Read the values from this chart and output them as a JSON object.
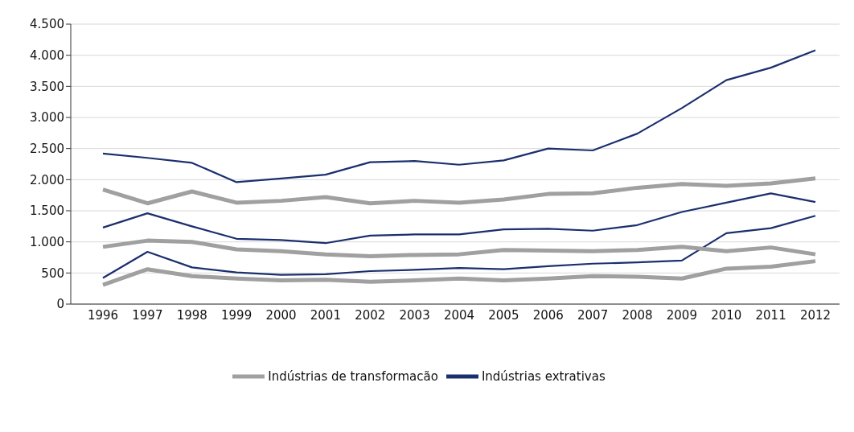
{
  "chart_data": {
    "type": "line",
    "categories": [
      "1996",
      "1997",
      "1998",
      "1999",
      "2000",
      "2001",
      "2002",
      "2003",
      "2004",
      "2005",
      "2006",
      "2007",
      "2008",
      "2009",
      "2010",
      "2011",
      "2012"
    ],
    "series": [
      {
        "name": "Indústrias extrativas",
        "color": "#1b2f6e",
        "values": [
          2420,
          2350,
          2270,
          1960,
          2020,
          2080,
          2280,
          2300,
          2240,
          2310,
          2500,
          2470,
          2740,
          3150,
          3600,
          3800,
          4080
        ]
      },
      {
        "color": "#1b2f6e",
        "values": [
          1230,
          1460,
          1250,
          1050,
          1030,
          980,
          1100,
          1120,
          1120,
          1200,
          1210,
          1180,
          1270,
          1480,
          1630,
          1780,
          1640
        ]
      },
      {
        "color": "#1b2f6e",
        "values": [
          420,
          840,
          590,
          510,
          470,
          480,
          530,
          550,
          580,
          560,
          610,
          650,
          670,
          700,
          1140,
          1220,
          1420
        ]
      },
      {
        "name": "Indústrias de transformacão",
        "color": "#a0a0a0",
        "values": [
          1840,
          1620,
          1810,
          1630,
          1660,
          1720,
          1620,
          1660,
          1630,
          1680,
          1770,
          1780,
          1870,
          1930,
          1900,
          1940,
          2020
        ]
      },
      {
        "color": "#a0a0a0",
        "values": [
          920,
          1020,
          1000,
          880,
          850,
          800,
          770,
          790,
          800,
          870,
          860,
          850,
          870,
          920,
          850,
          910,
          800
        ]
      },
      {
        "color": "#a0a0a0",
        "values": [
          310,
          560,
          450,
          410,
          380,
          390,
          360,
          380,
          410,
          380,
          410,
          450,
          440,
          410,
          570,
          600,
          690
        ]
      }
    ],
    "ylim": [
      0,
      4500
    ],
    "yticks": [
      {
        "value": 0,
        "label": "0"
      },
      {
        "value": 500,
        "label": "500"
      },
      {
        "value": 1000,
        "label": "1.000"
      },
      {
        "value": 1500,
        "label": "1.500"
      },
      {
        "value": 2000,
        "label": "2.000"
      },
      {
        "value": 2500,
        "label": "2.500"
      },
      {
        "value": 3000,
        "label": "3.000"
      },
      {
        "value": 3500,
        "label": "3.500"
      },
      {
        "value": 4000,
        "label": "4.000"
      },
      {
        "value": 4500,
        "label": "4.500"
      }
    ],
    "grid": "y",
    "legend": "bottom",
    "marker": "none",
    "line_style": "solid"
  }
}
